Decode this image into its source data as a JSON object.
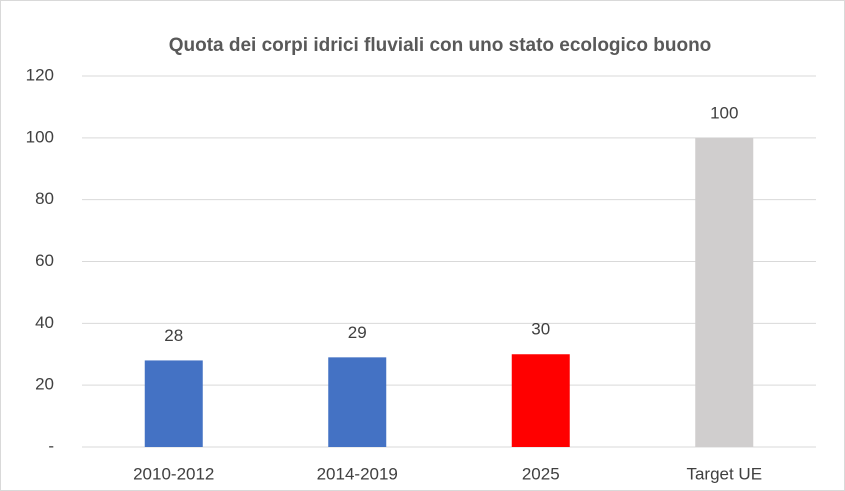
{
  "chart_data": {
    "type": "bar",
    "title": "Quota dei corpi idrici fluviali con uno stato ecologico buono",
    "categories": [
      "2010-2012",
      "2014-2019",
      "2025",
      "Target UE"
    ],
    "values": [
      28,
      29,
      30,
      100
    ],
    "colors": [
      "#4472c4",
      "#4472c4",
      "#ff0000",
      "#d0cece"
    ],
    "ylim": [
      0,
      120
    ],
    "yticks": [
      {
        "value": 0,
        "label": "-"
      },
      20,
      40,
      60,
      80,
      100,
      120
    ],
    "grid": true
  }
}
